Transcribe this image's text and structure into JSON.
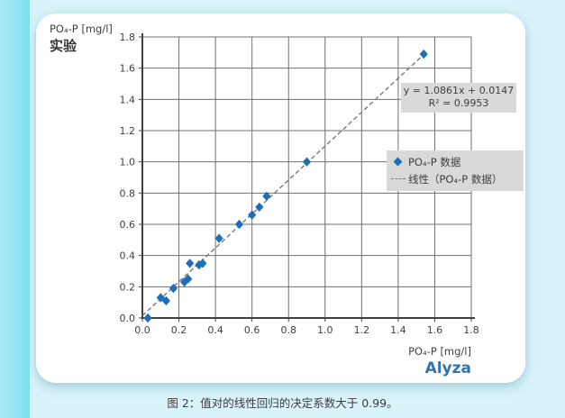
{
  "page": {
    "caption": "图 2：值对的线性回归的决定系数大于 0.99。"
  },
  "chart_data": {
    "type": "scatter",
    "y_axis_title": "PO₄-P [mg/l]",
    "y_axis_subtitle": "实验",
    "x_axis_title": "PO₄-P [mg/l]",
    "x_axis_subtitle": "Alyza",
    "xlim": [
      0,
      1.8
    ],
    "ylim": [
      0,
      1.8
    ],
    "grid": true,
    "x_ticks": [
      "0.0",
      "0.2",
      "0.4",
      "0.6",
      "0.8",
      "1.0",
      "1.2",
      "1.4",
      "1.6",
      "1.8"
    ],
    "y_ticks": [
      "0.0",
      "0.2",
      "0.4",
      "0.6",
      "0.8",
      "1.0",
      "1.2",
      "1.4",
      "1.6",
      "1.8"
    ],
    "points": [
      [
        0.03,
        0.0
      ],
      [
        0.1,
        0.13
      ],
      [
        0.13,
        0.11
      ],
      [
        0.17,
        0.19
      ],
      [
        0.23,
        0.23
      ],
      [
        0.25,
        0.25
      ],
      [
        0.26,
        0.35
      ],
      [
        0.31,
        0.34
      ],
      [
        0.33,
        0.35
      ],
      [
        0.42,
        0.51
      ],
      [
        0.53,
        0.6
      ],
      [
        0.6,
        0.66
      ],
      [
        0.64,
        0.71
      ],
      [
        0.68,
        0.78
      ],
      [
        0.9,
        1.0
      ],
      [
        1.54,
        1.69
      ]
    ],
    "trendline": {
      "slope": 1.0861,
      "intercept": 0.0147,
      "x_start": 0,
      "x_end": 1.555,
      "style": "dashed"
    },
    "equation_line1": "y = 1.0861x + 0.0147",
    "equation_line2": "R² = 0.9953",
    "legend": [
      {
        "marker": "diamond",
        "label": "PO₄-P 数据"
      },
      {
        "marker": "dashed-line",
        "label": "线性（PO₄-P 数据）"
      }
    ],
    "legend_position": "right-middle",
    "colors": {
      "point": "#1f6fb8",
      "trendline": "#7a7a7a",
      "grid": "#6f6f6f",
      "axis": "#404040",
      "text": "#3f3f3f",
      "box_bg": "#d9d9d9",
      "x_subtitle": "#2e74b5"
    }
  }
}
